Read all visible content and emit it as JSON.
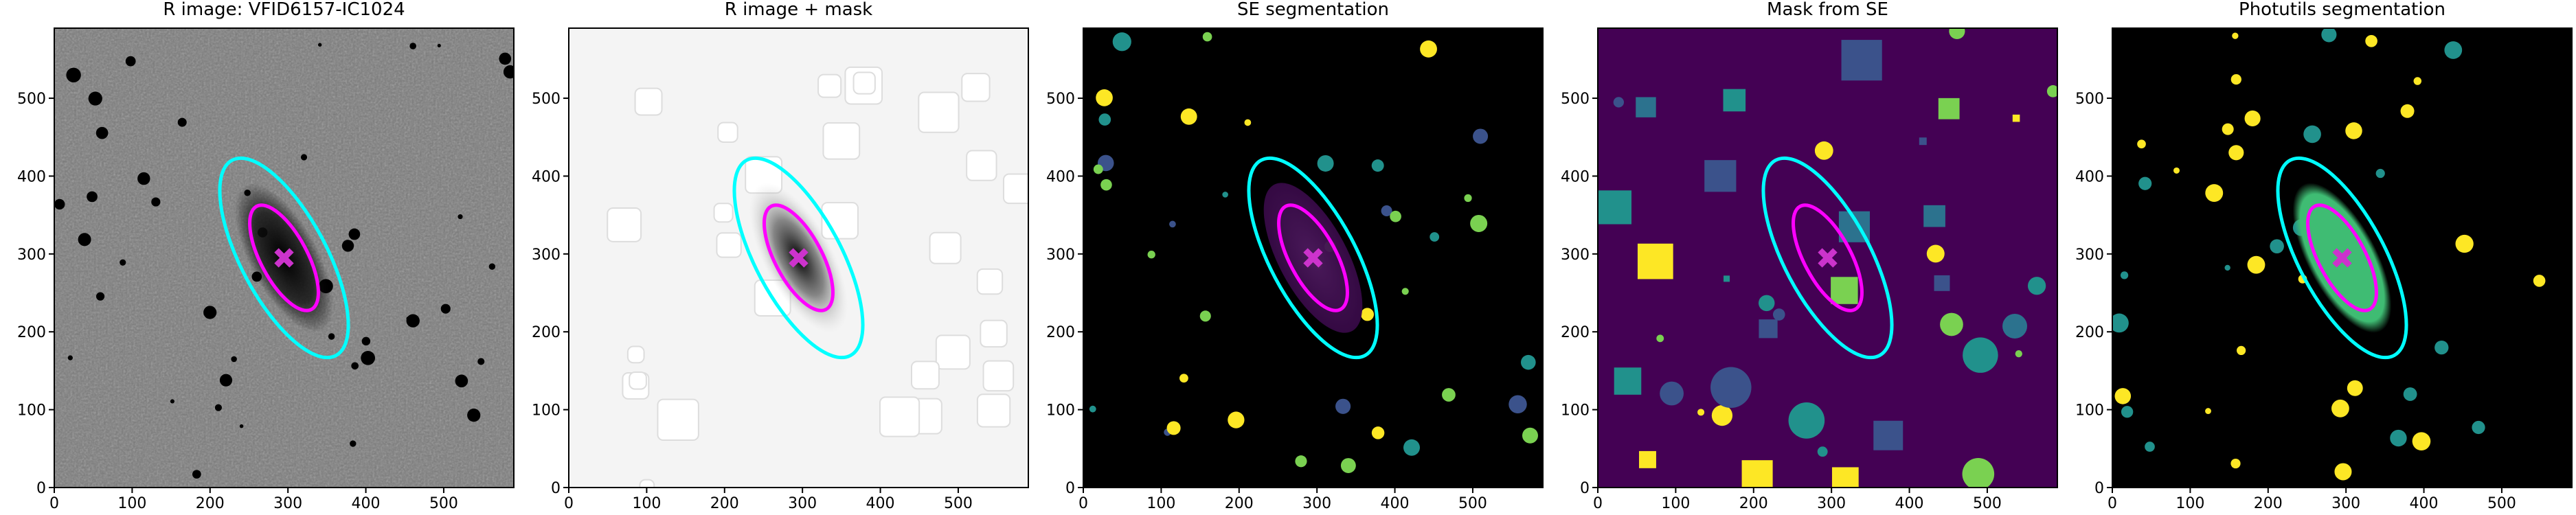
{
  "chart_data": [
    {
      "type": "image",
      "title": "R image: VFID6157-IC1024",
      "background": "#7a7a7a",
      "xlim": [
        0,
        590
      ],
      "ylim": [
        0,
        590
      ],
      "xticks": [
        0,
        100,
        200,
        300,
        400,
        500
      ],
      "yticks": [
        0,
        100,
        200,
        300,
        400,
        500
      ],
      "ellipses": [
        {
          "color": "#00ffff",
          "x": 295,
          "y": 295,
          "a": 142,
          "b": 55,
          "angle": 118
        },
        {
          "color": "#ff00ff",
          "x": 295,
          "y": 295,
          "a": 75,
          "b": 30,
          "angle": 118
        }
      ],
      "marker": {
        "x": 295,
        "y": 295,
        "color": "#cc33cc"
      }
    },
    {
      "type": "image",
      "title": "R image + mask",
      "background": "#f4f4f4",
      "xlim": [
        0,
        590
      ],
      "ylim": [
        0,
        590
      ],
      "xticks": [
        0,
        100,
        200,
        300,
        400,
        500
      ],
      "yticks": [
        0,
        100,
        200,
        300,
        400,
        500
      ],
      "ellipses": [
        {
          "color": "#00ffff",
          "x": 295,
          "y": 295,
          "a": 142,
          "b": 55,
          "angle": 118
        },
        {
          "color": "#ff00ff",
          "x": 295,
          "y": 295,
          "a": 75,
          "b": 30,
          "angle": 118
        }
      ],
      "marker": {
        "x": 295,
        "y": 295,
        "color": "#cc33cc"
      }
    },
    {
      "type": "image",
      "title": "SE segmentation",
      "background": "#000000",
      "xlim": [
        0,
        590
      ],
      "ylim": [
        0,
        590
      ],
      "xticks": [
        0,
        100,
        200,
        300,
        400,
        500
      ],
      "yticks": [
        0,
        100,
        200,
        300,
        400,
        500
      ],
      "ellipses": [
        {
          "color": "#00ffff",
          "x": 295,
          "y": 295,
          "a": 142,
          "b": 55,
          "angle": 118
        },
        {
          "color": "#ff00ff",
          "x": 295,
          "y": 295,
          "a": 75,
          "b": 30,
          "angle": 118
        }
      ],
      "marker": {
        "x": 295,
        "y": 295,
        "color": "#cc33cc"
      }
    },
    {
      "type": "image",
      "title": "Mask from SE",
      "background": "#440154",
      "xlim": [
        0,
        590
      ],
      "ylim": [
        0,
        590
      ],
      "xticks": [
        0,
        100,
        200,
        300,
        400,
        500
      ],
      "yticks": [
        0,
        100,
        200,
        300,
        400,
        500
      ],
      "ellipses": [
        {
          "color": "#00ffff",
          "x": 295,
          "y": 295,
          "a": 142,
          "b": 55,
          "angle": 118
        },
        {
          "color": "#ff00ff",
          "x": 295,
          "y": 295,
          "a": 75,
          "b": 30,
          "angle": 118
        }
      ],
      "marker": {
        "x": 295,
        "y": 295,
        "color": "#cc33cc"
      }
    },
    {
      "type": "image",
      "title": "Photutils segmentation",
      "background": "#000000",
      "xlim": [
        0,
        590
      ],
      "ylim": [
        0,
        590
      ],
      "xticks": [
        0,
        100,
        200,
        300,
        400,
        500
      ],
      "yticks": [
        0,
        100,
        200,
        300,
        400,
        500
      ],
      "ellipses": [
        {
          "color": "#00ffff",
          "x": 295,
          "y": 295,
          "a": 142,
          "b": 55,
          "angle": 118
        },
        {
          "color": "#ff00ff",
          "x": 295,
          "y": 295,
          "a": 75,
          "b": 30,
          "angle": 118
        }
      ],
      "marker": {
        "x": 295,
        "y": 295,
        "color": "#cc33cc"
      }
    }
  ]
}
